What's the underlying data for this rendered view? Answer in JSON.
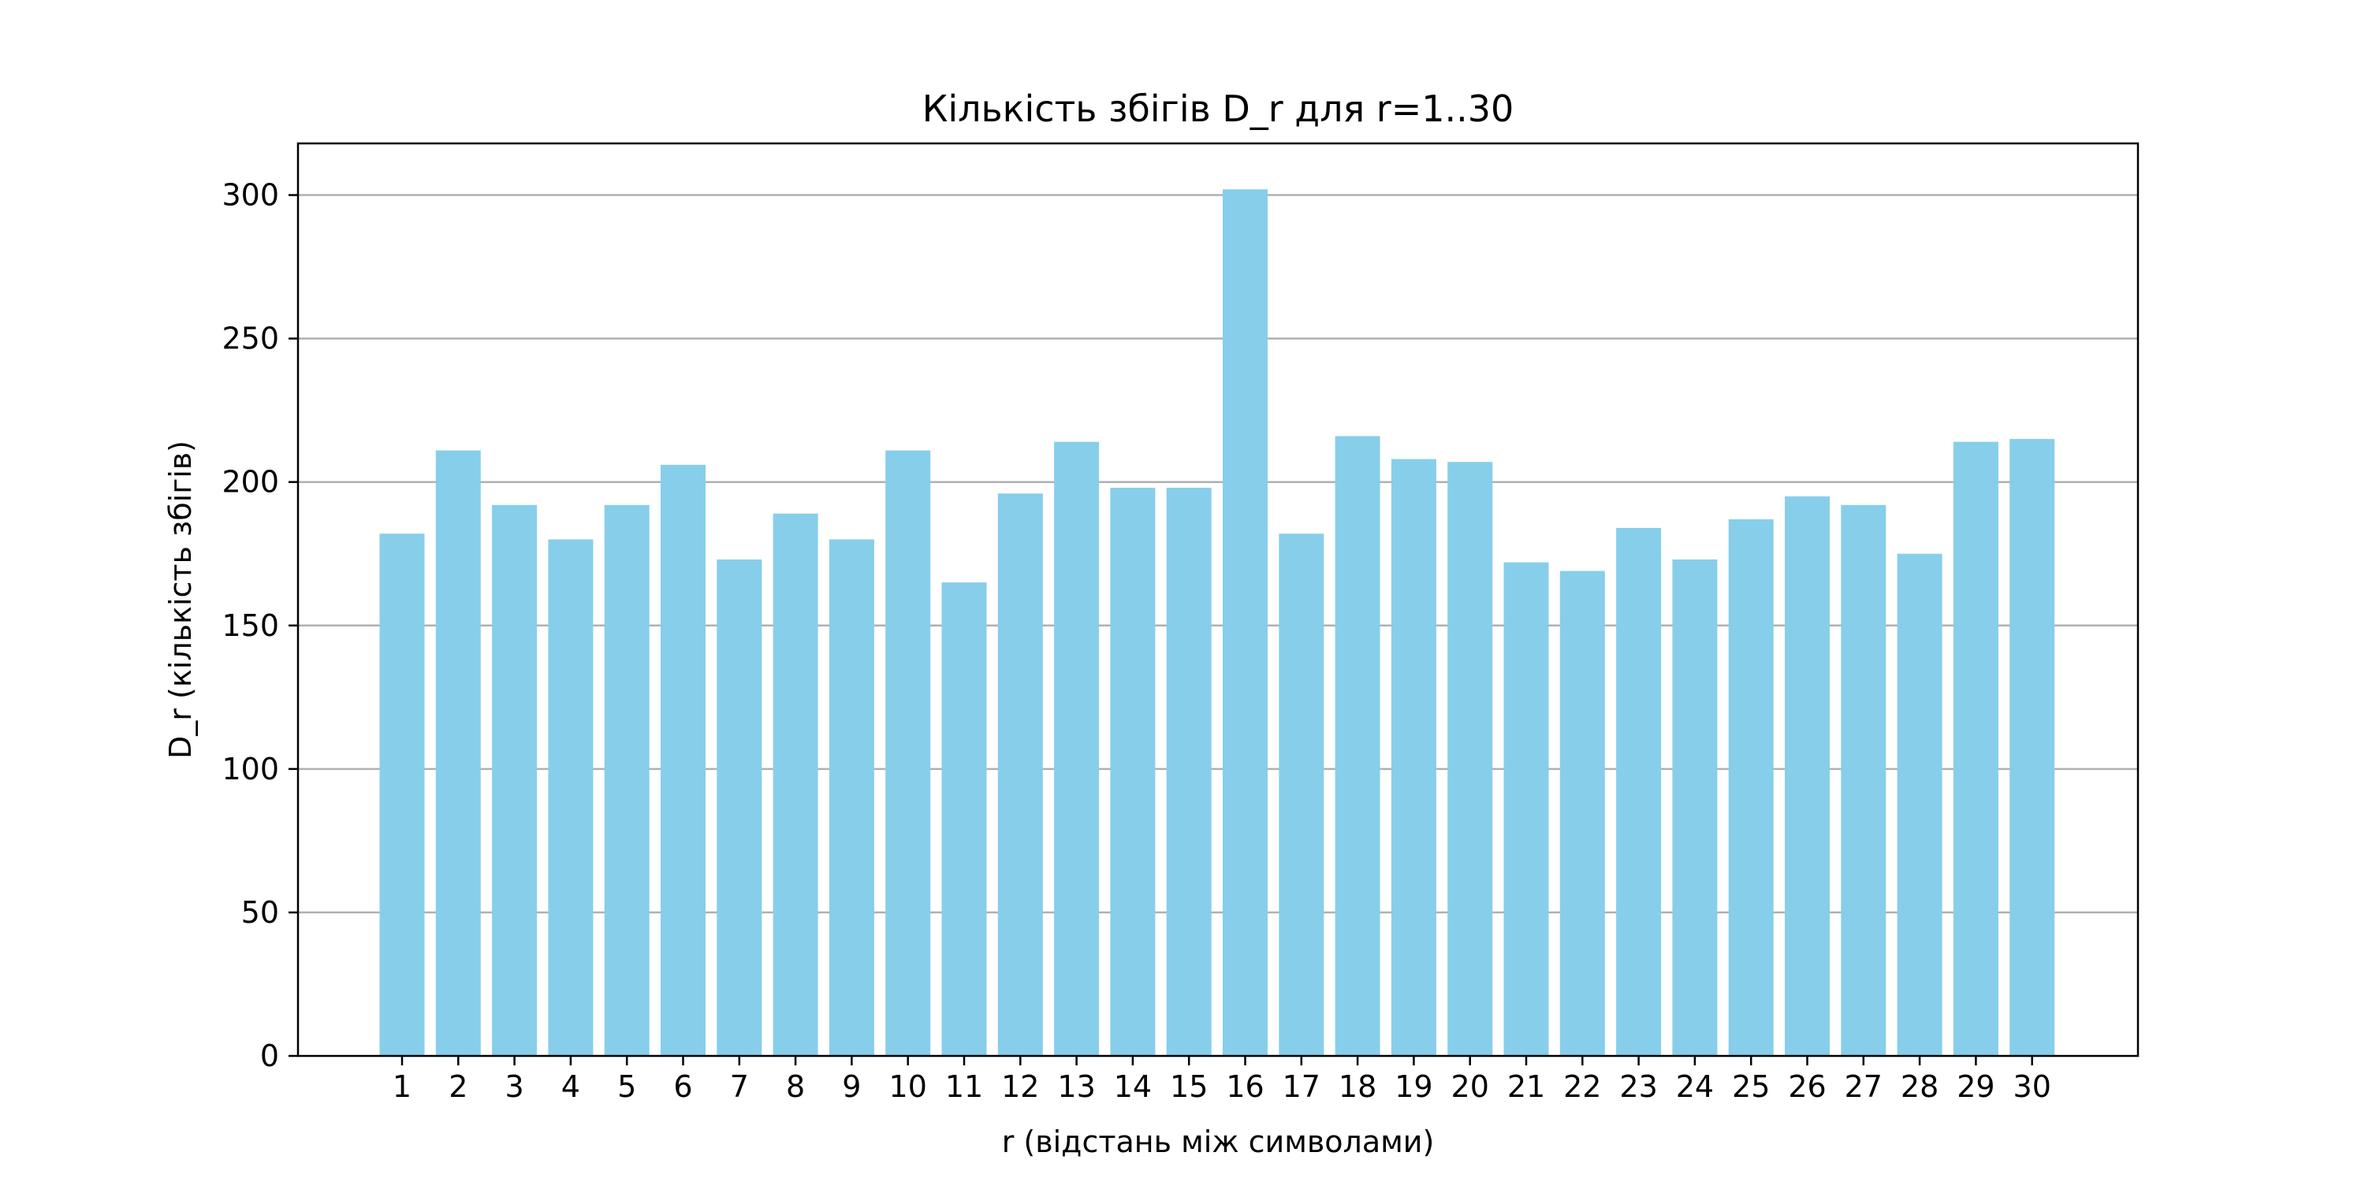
{
  "chart_data": {
    "type": "bar",
    "title": "Кількість збігів D_r для r=1..30",
    "xlabel": "r (відстань між символами)",
    "ylabel": "D_r (кількість збігів)",
    "categories": [
      "1",
      "2",
      "3",
      "4",
      "5",
      "6",
      "7",
      "8",
      "9",
      "10",
      "11",
      "12",
      "13",
      "14",
      "15",
      "16",
      "17",
      "18",
      "19",
      "20",
      "21",
      "22",
      "23",
      "24",
      "25",
      "26",
      "27",
      "28",
      "29",
      "30"
    ],
    "values": [
      182,
      211,
      192,
      180,
      192,
      206,
      173,
      189,
      180,
      211,
      165,
      196,
      214,
      198,
      198,
      302,
      182,
      216,
      208,
      207,
      172,
      169,
      184,
      173,
      187,
      195,
      192,
      175,
      214,
      215
    ],
    "ylim": [
      0,
      318
    ],
    "yticks": [
      0,
      50,
      100,
      150,
      200,
      250,
      300
    ],
    "grid": "horizontal",
    "bar_color": "#87CEEB",
    "grid_color": "#b0b0b0",
    "legend": "none"
  }
}
